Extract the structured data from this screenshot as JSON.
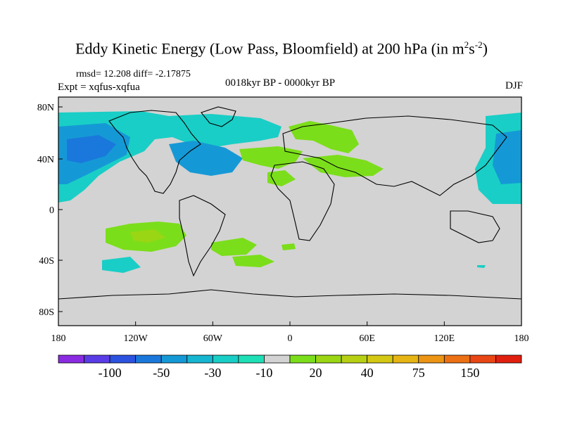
{
  "title": {
    "main": "Eddy Kinetic Energy (Low Pass, Bloomfield) at 200 hPa (in m",
    "sup1": "2",
    "mid": "s",
    "sup2": "-2",
    "end": ")"
  },
  "stats_text": "rmsd= 12.208 diff= -2.17875",
  "expt_text": "Expt = xqfus-xqfua",
  "period_text": "0018kyr BP - 0000kyr BP",
  "season_text": "DJF",
  "map": {
    "lon_ticks": [
      "180",
      "120W",
      "60W",
      "0",
      "60E",
      "120E",
      "180"
    ],
    "lat_ticks": [
      "80N",
      "40N",
      "0",
      "40S",
      "80S"
    ],
    "background_color": "#d3d3d3"
  },
  "colorbar": {
    "colors": [
      "#8a2be2",
      "#5a3ce6",
      "#2c52e0",
      "#1a78dc",
      "#1599d6",
      "#16b6d0",
      "#19cec6",
      "#1fdfb6",
      "#d3d3d3",
      "#7bde1a",
      "#9ad614",
      "#b8d014",
      "#d4c814",
      "#e6b414",
      "#ec9414",
      "#ec7014",
      "#e84614",
      "#e01f0f"
    ],
    "labels": [
      "-100",
      "-50",
      "-30",
      "-10",
      "20",
      "40",
      "75",
      "150"
    ]
  }
}
